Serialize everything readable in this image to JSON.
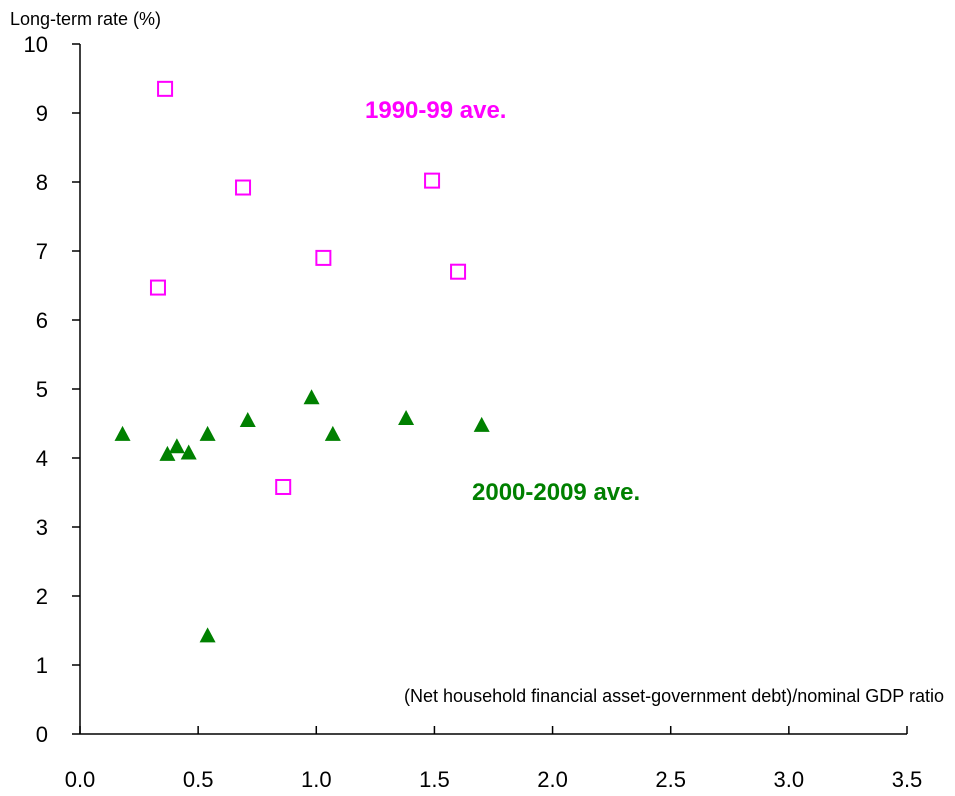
{
  "chart_data": {
    "type": "scatter",
    "ylabel": "Long-term rate (%)",
    "xlabel": "(Net household financial asset-government debt)/nominal GDP ratio",
    "xlim": [
      0.0,
      3.5
    ],
    "ylim": [
      0,
      10
    ],
    "x_ticks": [
      "0.0",
      "0.5",
      "1.0",
      "1.5",
      "2.0",
      "2.5",
      "3.0",
      "3.5"
    ],
    "y_ticks": [
      "0",
      "1",
      "2",
      "3",
      "4",
      "5",
      "6",
      "7",
      "8",
      "9",
      "10"
    ],
    "grid": false,
    "series": [
      {
        "name": "1990-99 ave.",
        "marker": "open-square",
        "color": "#ff00ff",
        "points": [
          {
            "x": 0.36,
            "y": 9.35
          },
          {
            "x": 0.69,
            "y": 7.92
          },
          {
            "x": 1.49,
            "y": 8.02
          },
          {
            "x": 1.03,
            "y": 6.9
          },
          {
            "x": 1.6,
            "y": 6.7
          },
          {
            "x": 0.33,
            "y": 6.47
          },
          {
            "x": 0.86,
            "y": 3.58
          }
        ]
      },
      {
        "name": "2000-2009 ave.",
        "marker": "filled-triangle",
        "color": "#008000",
        "points": [
          {
            "x": 0.18,
            "y": 4.35
          },
          {
            "x": 0.37,
            "y": 4.06
          },
          {
            "x": 0.41,
            "y": 4.17
          },
          {
            "x": 0.46,
            "y": 4.08
          },
          {
            "x": 0.54,
            "y": 4.35
          },
          {
            "x": 0.71,
            "y": 4.55
          },
          {
            "x": 0.98,
            "y": 4.88
          },
          {
            "x": 1.07,
            "y": 4.35
          },
          {
            "x": 1.38,
            "y": 4.58
          },
          {
            "x": 1.7,
            "y": 4.48
          },
          {
            "x": 0.54,
            "y": 1.43
          }
        ]
      }
    ]
  }
}
